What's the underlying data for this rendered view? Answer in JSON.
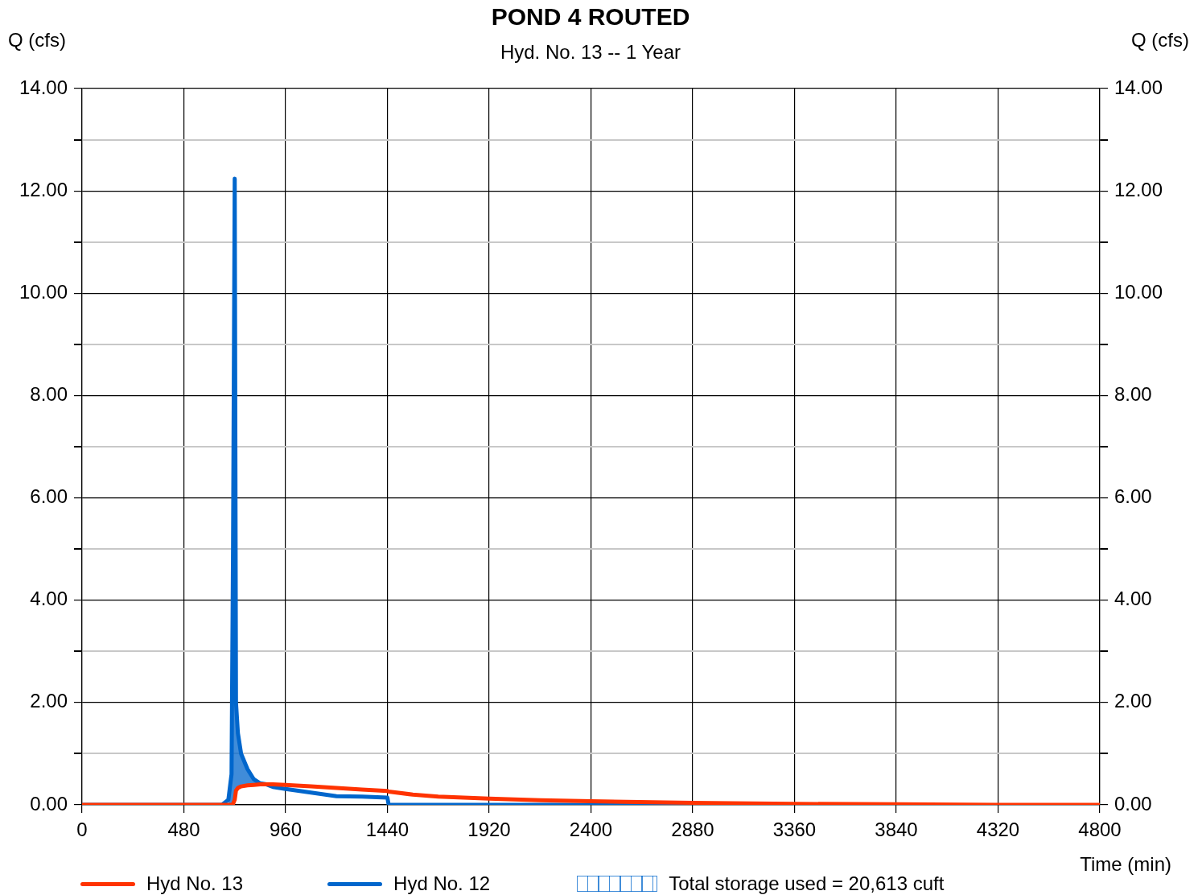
{
  "chart_data": {
    "type": "line",
    "title": "POND 4 ROUTED",
    "subtitle": "Hyd. No. 13 -- 1 Year",
    "xlabel": "Time (min)",
    "ylabel": "Q (cfs)",
    "y2label": "Q (cfs)",
    "annotations": [
      "Total storage used = 20,613 cuft"
    ],
    "x": [
      0,
      600,
      660,
      690,
      705,
      712,
      720,
      726,
      735,
      750,
      780,
      810,
      840,
      870,
      900,
      960,
      1080,
      1200,
      1320,
      1440,
      1446,
      1560,
      1680,
      1920,
      2160,
      2400,
      2880,
      3360,
      3840,
      4320,
      4800
    ],
    "series": [
      {
        "name": "Hyd No. 13",
        "color": "#ff3300",
        "values": [
          0,
          0,
          0,
          0,
          0,
          0.02,
          0.1,
          0.28,
          0.33,
          0.36,
          0.38,
          0.39,
          0.4,
          0.4,
          0.4,
          0.39,
          0.36,
          0.33,
          0.3,
          0.27,
          0.26,
          0.2,
          0.16,
          0.12,
          0.09,
          0.07,
          0.04,
          0.02,
          0.01,
          0,
          0
        ]
      },
      {
        "name": "Hyd No. 12",
        "color": "#0066cc",
        "values": [
          0,
          0,
          0,
          0.1,
          0.6,
          5,
          12.24,
          2.0,
          1.4,
          1.0,
          0.7,
          0.5,
          0.42,
          0.4,
          0.35,
          0.31,
          0.24,
          0.17,
          0.16,
          0.14,
          0,
          0,
          0,
          0,
          0,
          0,
          0,
          0,
          null,
          null,
          null
        ],
        "lower": [
          null,
          null,
          null,
          0,
          0,
          0.02,
          0.1,
          0.28,
          0.33,
          0.36,
          0.38,
          0.39,
          0.4,
          0.4,
          null,
          null,
          null,
          null,
          null,
          null,
          null,
          null,
          null,
          null,
          null,
          null,
          null,
          null,
          null,
          null,
          null
        ],
        "upper": [
          null,
          null,
          null,
          0.1,
          0.6,
          5,
          12.24,
          2.0,
          1.4,
          1.0,
          0.7,
          0.5,
          0.42,
          0.4,
          null,
          null,
          null,
          null,
          null,
          null,
          null,
          null,
          null,
          null,
          null,
          null,
          null,
          null,
          null,
          null,
          null
        ]
      }
    ],
    "xlim": [
      0,
      4800
    ],
    "xticks": [
      0,
      480,
      960,
      1440,
      1920,
      2400,
      2880,
      3360,
      3840,
      4320,
      4800
    ],
    "ylim": [
      0,
      14
    ],
    "yticks": [
      {
        "value": 0,
        "label": "0.00"
      },
      {
        "value": 1,
        "label": null
      },
      {
        "value": 2,
        "label": "2.00"
      },
      {
        "value": 3,
        "label": null
      },
      {
        "value": 4,
        "label": "4.00"
      },
      {
        "value": 5,
        "label": null
      },
      {
        "value": 6,
        "label": "6.00"
      },
      {
        "value": 7,
        "label": null
      },
      {
        "value": 8,
        "label": "8.00"
      },
      {
        "value": 9,
        "label": null
      },
      {
        "value": 10,
        "label": "10.00"
      },
      {
        "value": 11,
        "label": null
      },
      {
        "value": 12,
        "label": "12.00"
      },
      {
        "value": 13,
        "label": null
      },
      {
        "value": 14,
        "label": "14.00"
      }
    ],
    "y2lim": [
      0,
      14
    ],
    "y2ticks": [
      {
        "value": 0,
        "label": "0.00"
      },
      {
        "value": 1,
        "label": null
      },
      {
        "value": 2,
        "label": "2.00"
      },
      {
        "value": 3,
        "label": null
      },
      {
        "value": 4,
        "label": "4.00"
      },
      {
        "value": 5,
        "label": null
      },
      {
        "value": 6,
        "label": "6.00"
      },
      {
        "value": 7,
        "label": null
      },
      {
        "value": 8,
        "label": "8.00"
      },
      {
        "value": 9,
        "label": null
      },
      {
        "value": 10,
        "label": "10.00"
      },
      {
        "value": 11,
        "label": null
      },
      {
        "value": 12,
        "label": "12.00"
      },
      {
        "value": 13,
        "label": null
      },
      {
        "value": 14,
        "label": "14.00"
      }
    ],
    "grid": true,
    "legend": "bottom",
    "marker": "none",
    "line_style": "solid"
  }
}
